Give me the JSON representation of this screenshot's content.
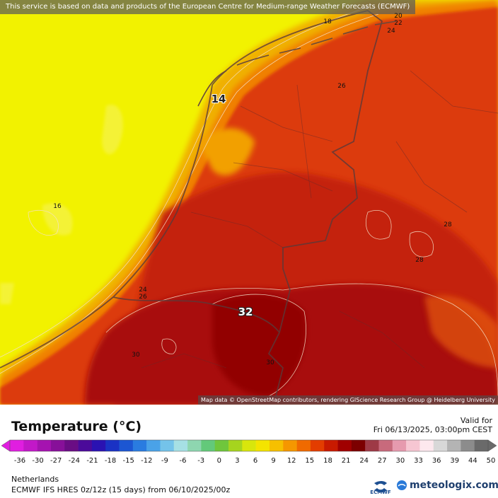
{
  "disclaimer": "This service is based on data and products of the European Centre for Medium-range Weather Forecasts (ECMWF)",
  "attribution": "Map data © OpenStreetMap contributors, rendering GIScience Research Group @ Heidelberg University",
  "contour_labels": [
    "18",
    "20",
    "22",
    "24",
    "14",
    "26",
    "16",
    "28",
    "28",
    "24",
    "26",
    "32",
    "30",
    "30"
  ],
  "legend": {
    "title": "Temperature (°C)",
    "valid_label": "Valid for",
    "valid_datetime": "Fri 06/13/2025, 03:00pm CEST",
    "ticks": [
      "-36",
      "-30",
      "-27",
      "-24",
      "-21",
      "-18",
      "-15",
      "-12",
      "-9",
      "-6",
      "-3",
      "0",
      "3",
      "6",
      "9",
      "12",
      "15",
      "18",
      "21",
      "24",
      "27",
      "30",
      "33",
      "36",
      "39",
      "44",
      "50"
    ],
    "colors": [
      "#e01ee0",
      "#c218c8",
      "#a513b0",
      "#871099",
      "#6a0d84",
      "#4b0a9a",
      "#2a12b2",
      "#1a32c4",
      "#1c56d2",
      "#2a7ce0",
      "#4aa2e8",
      "#74c3ea",
      "#a6e0e4",
      "#8ed6b0",
      "#63c97a",
      "#6fc63c",
      "#a6d41e",
      "#d8e60c",
      "#f4e400",
      "#f6c000",
      "#f59700",
      "#f06a00",
      "#e33d00",
      "#c81a00",
      "#a00000",
      "#7c0000",
      "#9e3a46",
      "#c86a7c",
      "#e69aae",
      "#f6c6d2",
      "#fde8ee",
      "#d8d8d8",
      "#b4b4b4",
      "#8c8c8c",
      "#6a6a6a"
    ]
  },
  "region": "Netherlands",
  "model": "ECMWF IFS HRES 0z/12z (15 days) from 06/10/2025/00z",
  "logos": {
    "ecmwf": "ECMWF",
    "meteologix": "meteologix.com"
  },
  "colors": {
    "sea_yellow": "#f2f200",
    "coast_orange": "#f59c00",
    "land_red": "#d8300a",
    "hot_darkred": "#a20808"
  }
}
